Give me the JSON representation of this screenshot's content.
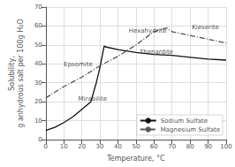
{
  "chart_data": {
    "type": "line",
    "xlabel": "Temperature, °C",
    "ylabel": "Solubility,\ng anhydrous salt per 100g H₂O",
    "xlim": [
      0,
      100
    ],
    "ylim": [
      0,
      70
    ],
    "xticks": [
      0,
      10,
      20,
      30,
      40,
      50,
      60,
      70,
      80,
      90,
      100
    ],
    "yticks": [
      0,
      10,
      20,
      30,
      40,
      50,
      60,
      70
    ],
    "grid": true,
    "legend": "lower right",
    "series": [
      {
        "name": "Sodium Sulfate",
        "color": "#111111",
        "line_style": "solid",
        "x": [
          0,
          5,
          10,
          15,
          20,
          25,
          28,
          30,
          32.4,
          33,
          40,
          50,
          60,
          70,
          80,
          90,
          100
        ],
        "values": [
          4.8,
          6.5,
          9,
          12,
          16,
          20,
          30,
          38,
          49.5,
          49,
          47.5,
          46,
          45,
          44.5,
          43.5,
          42.5,
          42
        ]
      },
      {
        "name": "Magnesium Sulfate",
        "color": "#555555",
        "line_style": "dashdot",
        "x": [
          0,
          10,
          20,
          30,
          40,
          50,
          60,
          67,
          70,
          80,
          90,
          100
        ],
        "values": [
          22,
          28,
          33,
          39,
          44,
          50,
          57,
          59,
          57,
          55,
          53,
          51
        ]
      }
    ],
    "annotations": [
      {
        "text": "Hexahydrite",
        "x": 46,
        "y": 57.5
      },
      {
        "text": "Kieserite",
        "x": 81,
        "y": 59.5
      },
      {
        "text": "Thenardite",
        "x": 52,
        "y": 46.0
      },
      {
        "text": "Epsomite",
        "x": 10,
        "y": 39.5
      },
      {
        "text": "Mirabilite",
        "x": 18,
        "y": 21.5
      }
    ]
  }
}
